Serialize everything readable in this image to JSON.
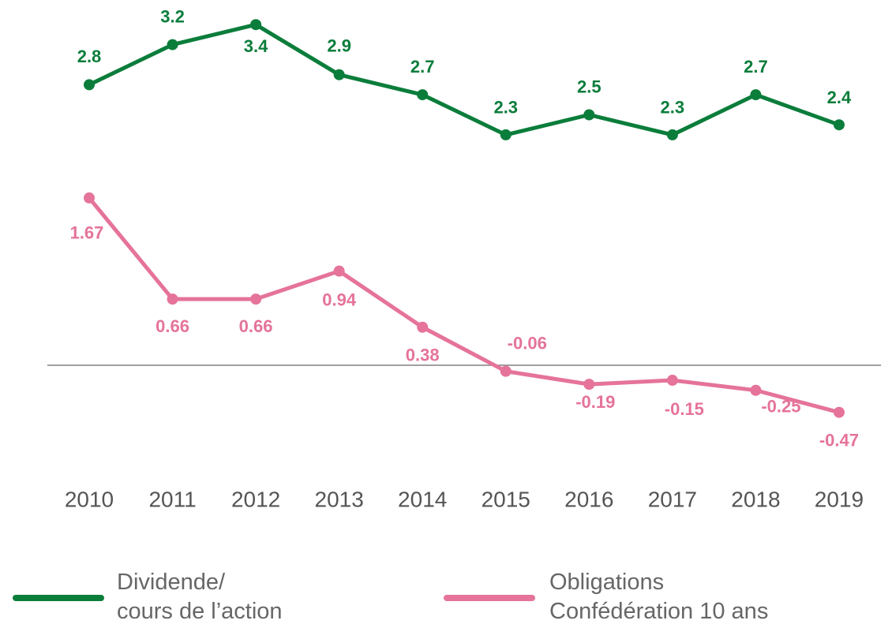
{
  "chart_data": {
    "type": "line",
    "categories": [
      "2010",
      "2011",
      "2012",
      "2013",
      "2014",
      "2015",
      "2016",
      "2017",
      "2018",
      "2019"
    ],
    "series": [
      {
        "name": "Dividende/\ncours de l’action",
        "color": "#0b7d3b",
        "values": [
          2.8,
          3.2,
          3.4,
          2.9,
          2.7,
          2.3,
          2.5,
          2.3,
          2.7,
          2.4
        ]
      },
      {
        "name": "Obligations\nConfédération 10 ans",
        "color": "#e5739a",
        "values": [
          1.67,
          0.66,
          0.66,
          0.94,
          0.38,
          -0.06,
          -0.19,
          -0.15,
          -0.25,
          -0.47
        ]
      }
    ],
    "ylim": [
      -1,
      3.5
    ]
  }
}
